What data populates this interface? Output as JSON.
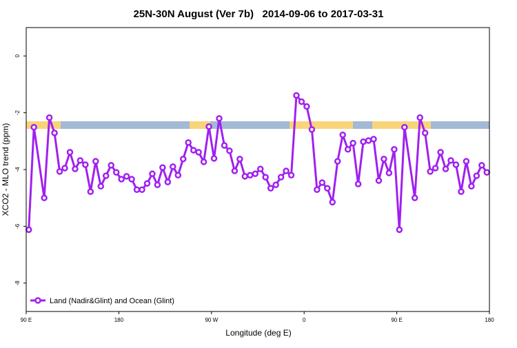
{
  "chart_data": {
    "type": "line",
    "title": "25N-30N August (Ver 7b)   2014-09-06 to 2017-03-31",
    "x_label": "Longitude (deg E)",
    "y_label": "XCO2 - MLO trend (ppm)",
    "xlim": [
      90,
      540
    ],
    "ylim": [
      -9,
      1
    ],
    "xticks": [
      {
        "value": 90,
        "label": "90 E"
      },
      180,
      {
        "value": 270,
        "label": "90 W"
      },
      {
        "value": 360,
        "label": "0"
      },
      {
        "value": 450,
        "label": "90 E"
      },
      {
        "value": 540,
        "label": "180"
      }
    ],
    "yticks": [
      0,
      -2,
      -4,
      -6,
      -8
    ],
    "legend": "bottom-left",
    "series": [
      {
        "name": "Land (Nadir&Glint) and Ocean (Glint)",
        "color": "#a020f0",
        "x": [
          92.5,
          97.5,
          107.5,
          112.5,
          117.5,
          122.5,
          127.5,
          132.5,
          137.5,
          142.5,
          147.5,
          152.5,
          157.5,
          162.5,
          167.5,
          172.5,
          177.5,
          182.5,
          187.5,
          192.5,
          197.5,
          202.5,
          207.5,
          212.5,
          217.5,
          222.5,
          227.5,
          232.5,
          237.5,
          242.5,
          247.5,
          252.5,
          257.5,
          262.5,
          267.5,
          272.5,
          277.5,
          282.5,
          287.5,
          292.5,
          297.5,
          302.5,
          307.5,
          312.5,
          317.5,
          322.5,
          327.5,
          332.5,
          337.5,
          342.5,
          347.5,
          352.5,
          357.5,
          362.5,
          367.5,
          372.5,
          377.5,
          382.5,
          387.5,
          392.5,
          397.5,
          402.5,
          407.5,
          412.5,
          417.5,
          422.5,
          427.5,
          432.5,
          437.5,
          442.5,
          447.5,
          452.5,
          457.5,
          467.5,
          472.5,
          477.5,
          482.5,
          487.5,
          492.5,
          497.5,
          502.5,
          507.5,
          512.5,
          517.5,
          522.5,
          527.5,
          532.5,
          537.5
        ],
        "values": [
          -6.12,
          -2.51,
          -5.0,
          -2.17,
          -2.71,
          -4.07,
          -3.95,
          -3.39,
          -3.98,
          -3.68,
          -3.83,
          -4.78,
          -3.71,
          -4.59,
          -4.22,
          -3.85,
          -4.1,
          -4.34,
          -4.24,
          -4.34,
          -4.71,
          -4.71,
          -4.49,
          -4.15,
          -4.54,
          -3.93,
          -4.44,
          -3.9,
          -4.2,
          -3.63,
          -3.05,
          -3.32,
          -3.39,
          -3.73,
          -2.49,
          -3.61,
          -2.2,
          -3.15,
          -3.34,
          -4.05,
          -3.63,
          -4.24,
          -4.2,
          -4.15,
          -3.98,
          -4.27,
          -4.66,
          -4.54,
          -4.27,
          -4.05,
          -4.2,
          -1.39,
          -1.61,
          -1.78,
          -2.59,
          -4.71,
          -4.46,
          -4.66,
          -5.15,
          -3.71,
          -2.78,
          -3.29,
          -3.07,
          -4.51,
          -3.02,
          -2.98,
          -2.93,
          -4.39,
          -3.63,
          -4.12,
          -3.29,
          -6.12,
          -2.51,
          -5.0,
          -2.17,
          -2.71,
          -4.07,
          -3.95,
          -3.39,
          -3.98,
          -3.68,
          -3.83,
          -4.78,
          -3.71,
          -4.59,
          -4.22,
          -3.85,
          -4.1
        ]
      }
    ]
  }
}
